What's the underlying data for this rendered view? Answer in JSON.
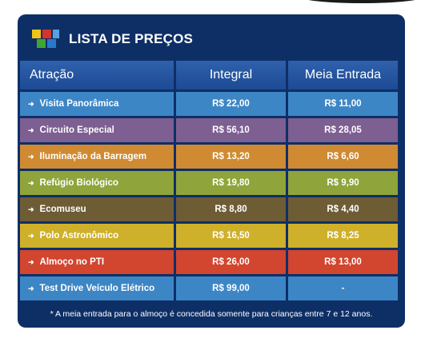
{
  "header": {
    "title": "LISTA DE PREÇOS",
    "logo_icon": "colored-squares-logo"
  },
  "table": {
    "columns": [
      "Atração",
      "Integral",
      "Meia Entrada"
    ],
    "rows": [
      {
        "attraction": "Visita Panorâmica",
        "integral": "R$ 22,00",
        "meia": "R$ 11,00",
        "color": "#3d86c6"
      },
      {
        "attraction": "Circuito Especial",
        "integral": "R$ 56,10",
        "meia": "R$ 28,05",
        "color": "#7d5f92"
      },
      {
        "attraction": "Iluminação da Barragem",
        "integral": "R$ 13,20",
        "meia": "R$ 6,60",
        "color": "#cf8a32"
      },
      {
        "attraction": "Refúgio Biológico",
        "integral": "R$ 19,80",
        "meia": "R$ 9,90",
        "color": "#8fa43a"
      },
      {
        "attraction": "Ecomuseu",
        "integral": "R$ 8,80",
        "meia": "R$ 4,40",
        "color": "#6e5c35"
      },
      {
        "attraction": "Polo Astronômico",
        "integral": "R$ 16,50",
        "meia": "R$ 8,25",
        "color": "#cfb02a"
      },
      {
        "attraction": "Almoço no PTI",
        "integral": "R$ 26,00",
        "meia": "R$ 13,00",
        "color": "#d2452f"
      },
      {
        "attraction": "Test Drive Veículo Elétrico",
        "integral": "R$ 99,00",
        "meia": "-",
        "color": "#3d86c6"
      }
    ]
  },
  "footnote": "* A meia entrada para o almoço é concedida somente para crianças entre 7 e 12 anos.",
  "colors": {
    "panel_bg": "#0e2f66",
    "header_cell": "#2a5aa6"
  }
}
